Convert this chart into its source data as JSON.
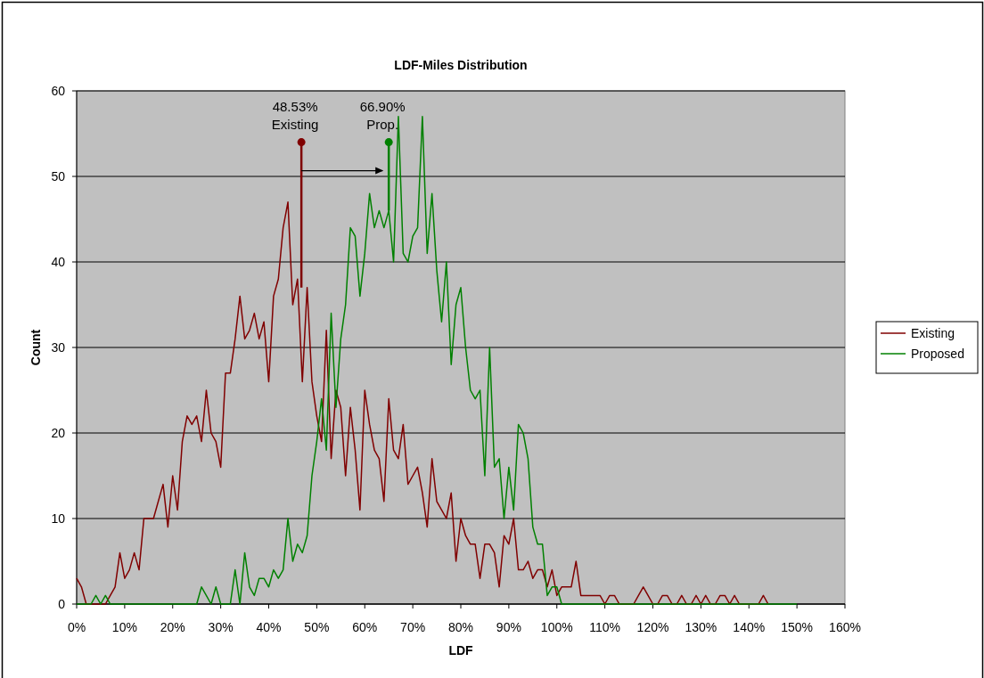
{
  "chart_data": {
    "type": "line",
    "title": "LDF-Miles Distribution",
    "xlabel": "LDF",
    "ylabel": "Count",
    "x": [
      0,
      1,
      2,
      3,
      4,
      5,
      6,
      7,
      8,
      9,
      10,
      11,
      12,
      13,
      14,
      15,
      16,
      17,
      18,
      19,
      20,
      21,
      22,
      23,
      24,
      25,
      26,
      27,
      28,
      29,
      30,
      31,
      32,
      33,
      34,
      35,
      36,
      37,
      38,
      39,
      40,
      41,
      42,
      43,
      44,
      45,
      46,
      47,
      48,
      49,
      50,
      51,
      52,
      53,
      54,
      55,
      56,
      57,
      58,
      59,
      60,
      61,
      62,
      63,
      64,
      65,
      66,
      67,
      68,
      69,
      70,
      71,
      72,
      73,
      74,
      75,
      76,
      77,
      78,
      79,
      80,
      81,
      82,
      83,
      84,
      85,
      86,
      87,
      88,
      89,
      90,
      91,
      92,
      93,
      94,
      95,
      96,
      97,
      98,
      99,
      100,
      101,
      102,
      103,
      104,
      105,
      106,
      107,
      108,
      109,
      110,
      111,
      112,
      113,
      114,
      115,
      116,
      117,
      118,
      119,
      120,
      121,
      122,
      123,
      124,
      125,
      126,
      127,
      128,
      129,
      130,
      131,
      132,
      133,
      134,
      135,
      136,
      137,
      138,
      139,
      140,
      141,
      142,
      143,
      144,
      145,
      146,
      147,
      148,
      149,
      150
    ],
    "xlim": [
      0,
      160
    ],
    "xticks": [
      {
        "value": 0,
        "label": "0%"
      },
      {
        "value": 10,
        "label": "10%"
      },
      {
        "value": 20,
        "label": "20%"
      },
      {
        "value": 30,
        "label": "30%"
      },
      {
        "value": 40,
        "label": "40%"
      },
      {
        "value": 50,
        "label": "50%"
      },
      {
        "value": 60,
        "label": "60%"
      },
      {
        "value": 70,
        "label": "70%"
      },
      {
        "value": 80,
        "label": "80%"
      },
      {
        "value": 90,
        "label": "90%"
      },
      {
        "value": 100,
        "label": "100%"
      },
      {
        "value": 110,
        "label": "110%"
      },
      {
        "value": 120,
        "label": "120%"
      },
      {
        "value": 130,
        "label": "130%"
      },
      {
        "value": 140,
        "label": "140%"
      },
      {
        "value": 150,
        "label": "150%"
      },
      {
        "value": 160,
        "label": "160%"
      }
    ],
    "ylim": [
      0,
      60
    ],
    "yticks": [
      0,
      10,
      20,
      30,
      40,
      50,
      60
    ],
    "grid": "y",
    "legend": "right",
    "series": [
      {
        "name": "Existing",
        "color": "#800000",
        "x": [
          0,
          1,
          2,
          3,
          4,
          5,
          6,
          7,
          8,
          9,
          10,
          11,
          12,
          13,
          14,
          15,
          16,
          17,
          18,
          19,
          20,
          21,
          22,
          23,
          24,
          25,
          26,
          27,
          28,
          29,
          30,
          31,
          32,
          33,
          34,
          35,
          36,
          37,
          38,
          39,
          40,
          41,
          42,
          43,
          44,
          45,
          46,
          47,
          48,
          49,
          50,
          51,
          52,
          53,
          54,
          55,
          56,
          57,
          58,
          59,
          60,
          61,
          62,
          63,
          64,
          65,
          66,
          67,
          68,
          69,
          70,
          71,
          72,
          73,
          74,
          75,
          76,
          77,
          78,
          79,
          80,
          81,
          82,
          83,
          84,
          85,
          86,
          87,
          88,
          89,
          90,
          91,
          92,
          93,
          94,
          95,
          96,
          97,
          98,
          99,
          100,
          101,
          102,
          103,
          104,
          105,
          106,
          107,
          108,
          109,
          110,
          111,
          112,
          113,
          114,
          115,
          116,
          117,
          118,
          119,
          120,
          121,
          122,
          123,
          124,
          125,
          126,
          127,
          128,
          129,
          130,
          131,
          132,
          133,
          134,
          135,
          136,
          137,
          138,
          139,
          140,
          141,
          142,
          143,
          144
        ],
        "values": [
          3,
          2,
          0,
          0,
          0,
          0,
          0,
          1,
          2,
          6,
          3,
          4,
          6,
          4,
          10,
          10,
          10,
          12,
          14,
          9,
          15,
          11,
          19,
          22,
          21,
          22,
          19,
          25,
          20,
          19,
          16,
          27,
          27,
          31,
          36,
          31,
          32,
          34,
          31,
          33,
          26,
          36,
          38,
          44,
          47,
          35,
          38,
          26,
          37,
          26,
          22,
          19,
          32,
          17,
          25,
          23,
          15,
          23,
          18,
          11,
          25,
          21,
          18,
          17,
          12,
          24,
          18,
          17,
          21,
          14,
          15,
          16,
          13,
          9,
          17,
          12,
          11,
          10,
          13,
          5,
          10,
          8,
          7,
          7,
          3,
          7,
          7,
          6,
          2,
          8,
          7,
          10,
          4,
          4,
          5,
          3,
          4,
          4,
          2,
          4,
          1,
          2,
          2,
          2,
          5,
          1,
          1,
          1,
          1,
          1,
          0,
          1,
          1,
          0,
          0,
          0,
          0,
          1,
          2,
          1,
          0,
          0,
          1,
          1,
          0,
          0,
          1,
          0,
          0,
          1,
          0,
          1,
          0,
          0,
          1,
          1,
          0,
          1,
          0,
          0,
          0,
          0,
          0,
          1,
          0
        ]
      },
      {
        "name": "Proposed",
        "color": "#008000",
        "values": [
          0,
          0,
          0,
          0,
          1,
          0,
          1,
          0,
          0,
          0,
          0,
          0,
          0,
          0,
          0,
          0,
          0,
          0,
          0,
          0,
          0,
          0,
          0,
          0,
          0,
          0,
          2,
          1,
          0,
          2,
          0,
          0,
          0,
          4,
          0,
          6,
          2,
          1,
          3,
          3,
          2,
          4,
          3,
          4,
          10,
          5,
          7,
          6,
          8,
          15,
          19,
          24,
          18,
          34,
          23,
          31,
          35,
          44,
          43,
          36,
          41,
          48,
          44,
          46,
          44,
          46,
          40,
          57,
          41,
          40,
          43,
          44,
          57,
          41,
          48,
          39,
          33,
          40,
          28,
          35,
          37,
          30,
          25,
          24,
          25,
          15,
          30,
          16,
          17,
          10,
          16,
          11,
          21,
          20,
          17,
          9,
          7,
          7,
          1,
          2,
          2,
          0,
          0,
          0,
          0,
          0,
          0,
          0,
          0,
          0,
          0,
          0,
          0,
          0,
          0,
          0,
          0,
          0,
          0,
          0,
          0,
          0,
          0,
          0,
          0,
          0,
          0,
          0,
          0,
          0,
          0,
          0,
          0,
          0,
          0,
          0,
          0,
          0,
          0,
          0,
          0,
          0,
          0,
          0,
          0,
          0,
          0,
          0,
          0,
          0,
          0
        ]
      },
      {
        "type": "scatter",
        "marker": "circle",
        "x": [
          46.8,
          65
        ],
        "values": [
          54,
          54
        ],
        "errors": [
          [
            37,
            54
          ],
          [
            46,
            54
          ]
        ],
        "colors": [
          "#800000",
          "#008000"
        ]
      }
    ],
    "annotations": [
      {
        "text": "48.53%\nExisting",
        "x": 46.8,
        "y": 54
      },
      {
        "text": "66.90%\nProp.",
        "x": 65,
        "y": 54
      }
    ]
  }
}
